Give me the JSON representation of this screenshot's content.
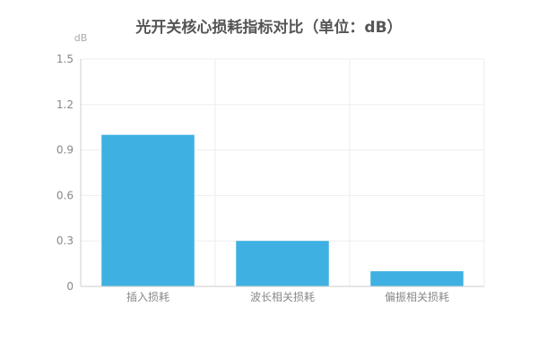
{
  "chart_data": {
    "type": "bar",
    "title": "光开关核心损耗指标对比（单位：dB）",
    "ylabel": "dB",
    "xlabel": "",
    "categories": [
      "插入损耗",
      "波长相关损耗",
      "偏振相关损耗"
    ],
    "values": [
      1.0,
      0.3,
      0.1
    ],
    "ylim": [
      0,
      1.5
    ],
    "yticks": [
      "0",
      "0.3",
      "0.6",
      "0.9",
      "1.2",
      "1.5"
    ],
    "grid": true,
    "bar_color": "#3eb1e2"
  }
}
